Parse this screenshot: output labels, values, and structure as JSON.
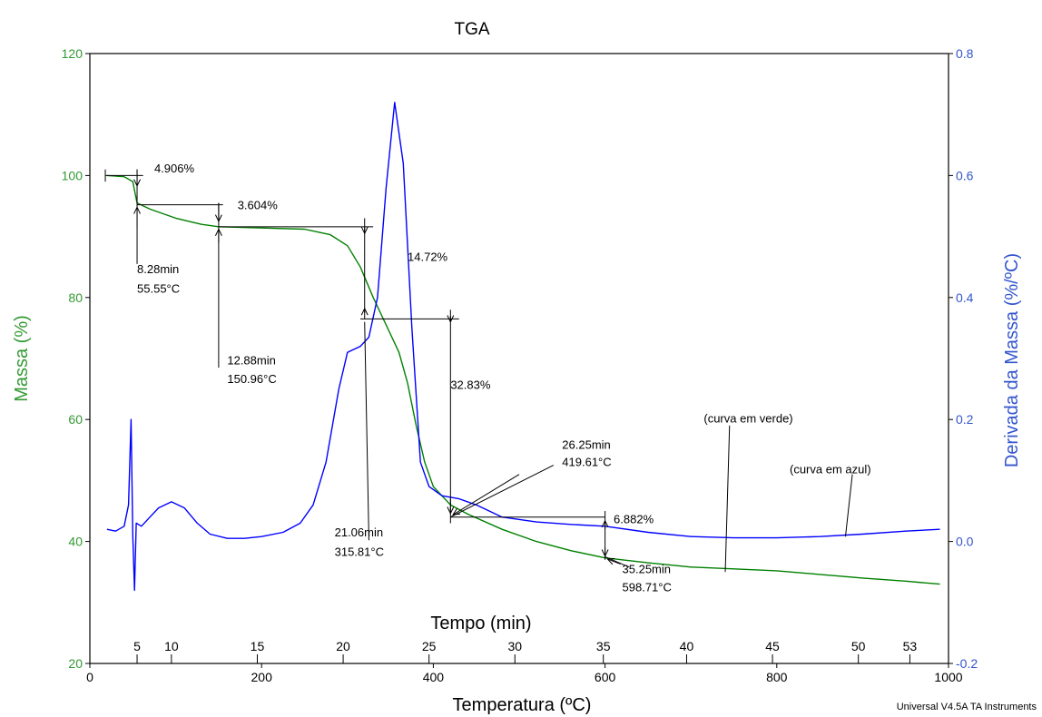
{
  "chart_data": {
    "type": "line",
    "title": "TGA",
    "xlabel": "Temperatura (ºC)",
    "x2label": "Tempo (min)",
    "ylabel": "Massa (%)",
    "y2label": "Derivada da Massa (%/ºC)",
    "footer": "Universal V4.5A TA Instruments",
    "xlim": [
      0,
      1000
    ],
    "ylim": [
      20,
      120
    ],
    "y2lim": [
      -0.2,
      0.8
    ],
    "x_ticks": [
      "0",
      "200",
      "400",
      "600",
      "800",
      "1000"
    ],
    "y_ticks": [
      "20",
      "40",
      "60",
      "80",
      "100",
      "120"
    ],
    "y2_ticks": [
      "-0.2",
      "0.0",
      "0.2",
      "0.4",
      "0.6",
      "0.8"
    ],
    "time_ticks": [
      {
        "label": "5",
        "temp": 55
      },
      {
        "label": "10",
        "temp": 95
      },
      {
        "label": "15",
        "temp": 195
      },
      {
        "label": "20",
        "temp": 295
      },
      {
        "label": "25",
        "temp": 395
      },
      {
        "label": "30",
        "temp": 495
      },
      {
        "label": "35",
        "temp": 598
      },
      {
        "label": "40",
        "temp": 695
      },
      {
        "label": "45",
        "temp": 795
      },
      {
        "label": "50",
        "temp": 895
      },
      {
        "label": "53",
        "temp": 955
      }
    ],
    "colors": {
      "mass": "#008000",
      "deriv": "#0000ff",
      "mass_axis": "#339933",
      "deriv_axis": "#3355cc"
    },
    "series": [
      {
        "key": "mass",
        "axis": "left",
        "points": [
          [
            20,
            100
          ],
          [
            40,
            99.8
          ],
          [
            50,
            99
          ],
          [
            55,
            95.5
          ],
          [
            70,
            94.5
          ],
          [
            100,
            93
          ],
          [
            130,
            92
          ],
          [
            150,
            91.6
          ],
          [
            200,
            91.4
          ],
          [
            250,
            91.2
          ],
          [
            280,
            90.3
          ],
          [
            300,
            88.5
          ],
          [
            315,
            85
          ],
          [
            330,
            80
          ],
          [
            345,
            75.5
          ],
          [
            360,
            71
          ],
          [
            370,
            66
          ],
          [
            380,
            59
          ],
          [
            390,
            53
          ],
          [
            400,
            49
          ],
          [
            420,
            46
          ],
          [
            440,
            44.5
          ],
          [
            480,
            42
          ],
          [
            520,
            40
          ],
          [
            560,
            38.5
          ],
          [
            600,
            37.3
          ],
          [
            650,
            36.5
          ],
          [
            700,
            35.8
          ],
          [
            750,
            35.5
          ],
          [
            800,
            35.2
          ],
          [
            850,
            34.6
          ],
          [
            900,
            34
          ],
          [
            950,
            33.5
          ],
          [
            990,
            33
          ]
        ]
      },
      {
        "key": "deriv",
        "axis": "right",
        "points": [
          [
            20,
            0.02
          ],
          [
            30,
            0.017
          ],
          [
            40,
            0.025
          ],
          [
            45,
            0.06
          ],
          [
            48,
            0.2
          ],
          [
            50,
            0.01
          ],
          [
            52,
            -0.08
          ],
          [
            54,
            0.03
          ],
          [
            60,
            0.025
          ],
          [
            70,
            0.04
          ],
          [
            80,
            0.055
          ],
          [
            95,
            0.065
          ],
          [
            110,
            0.055
          ],
          [
            125,
            0.03
          ],
          [
            140,
            0.012
          ],
          [
            160,
            0.005
          ],
          [
            180,
            0.005
          ],
          [
            200,
            0.008
          ],
          [
            225,
            0.015
          ],
          [
            245,
            0.03
          ],
          [
            260,
            0.06
          ],
          [
            275,
            0.13
          ],
          [
            290,
            0.25
          ],
          [
            300,
            0.31
          ],
          [
            315,
            0.32
          ],
          [
            325,
            0.335
          ],
          [
            335,
            0.4
          ],
          [
            345,
            0.58
          ],
          [
            355,
            0.72
          ],
          [
            365,
            0.62
          ],
          [
            375,
            0.35
          ],
          [
            385,
            0.13
          ],
          [
            395,
            0.09
          ],
          [
            410,
            0.075
          ],
          [
            430,
            0.07
          ],
          [
            450,
            0.06
          ],
          [
            480,
            0.04
          ],
          [
            520,
            0.032
          ],
          [
            560,
            0.028
          ],
          [
            600,
            0.025
          ],
          [
            650,
            0.015
          ],
          [
            700,
            0.008
          ],
          [
            750,
            0.006
          ],
          [
            800,
            0.006
          ],
          [
            850,
            0.008
          ],
          [
            900,
            0.012
          ],
          [
            950,
            0.017
          ],
          [
            990,
            0.02
          ]
        ]
      }
    ],
    "annotations": {
      "labels": [
        {
          "text": "4.906%",
          "x": 75,
          "y": 100.5
        },
        {
          "text": "3.604%",
          "x": 172,
          "y": 94.5
        },
        {
          "text": "14.72%",
          "x": 370,
          "y": 86
        },
        {
          "text": "32.83%",
          "x": 420,
          "y": 65
        },
        {
          "text": "6.882%",
          "x": 610,
          "y": 43
        },
        {
          "text": "8.28min",
          "x": 55,
          "y": 84
        },
        {
          "text": "55.55°C",
          "x": 55,
          "y": 80.8
        },
        {
          "text": "12.88min",
          "x": 160,
          "y": 69
        },
        {
          "text": "150.96°C",
          "x": 160,
          "y": 66
        },
        {
          "text": "21.06min",
          "x": 285,
          "y": 40.8
        },
        {
          "text": "315.81°C",
          "x": 285,
          "y": 37.6
        },
        {
          "text": "26.25min",
          "x": 550,
          "y": 55.2
        },
        {
          "text": "419.61°C",
          "x": 550,
          "y": 52.4
        },
        {
          "text": "35.25min",
          "x": 620,
          "y": 34.8
        },
        {
          "text": "598.71°C",
          "x": 620,
          "y": 31.8
        },
        {
          "text": "(curva em verde)",
          "x": 715,
          "y": 59.5
        },
        {
          "text": "(curva em azul)",
          "x": 815,
          "y": 51.2
        }
      ],
      "segments": [
        [
          18,
          100,
          62,
          100
        ],
        [
          18,
          99,
          18,
          101
        ],
        [
          55,
          101,
          55,
          85.5
        ],
        [
          55,
          95.2,
          155,
          95.2
        ],
        [
          150,
          95.5,
          150,
          68.5
        ],
        [
          150,
          91.6,
          330,
          91.6
        ],
        [
          320,
          93,
          320,
          76.5
        ],
        [
          315,
          76.5,
          430,
          76.5
        ],
        [
          420,
          78,
          420,
          43
        ],
        [
          420,
          44,
          600,
          44
        ],
        [
          600,
          45,
          600,
          37
        ],
        [
          320,
          76,
          325,
          40.2
        ],
        [
          420,
          44,
          540,
          52.5
        ],
        [
          600,
          37.5,
          628,
          35.8
        ],
        [
          745,
          59,
          740,
          35
        ],
        [
          888,
          51,
          880,
          40.8
        ]
      ],
      "arrows": [
        [
          55,
          101,
          55,
          98.3
        ],
        [
          55,
          91.5,
          55,
          94.8
        ],
        [
          150,
          95.5,
          150,
          92.5
        ],
        [
          150,
          89,
          150,
          91.2
        ],
        [
          320,
          91.5,
          320,
          90.5
        ],
        [
          320,
          77.5,
          320,
          78.2
        ],
        [
          420,
          77,
          420,
          76
        ],
        [
          420,
          47,
          420,
          44.6
        ],
        [
          600,
          42,
          600,
          43.4
        ],
        [
          600,
          39,
          600,
          37.6
        ],
        [
          500,
          51,
          423,
          44.4
        ],
        [
          618,
          36.3,
          603,
          37.1
        ]
      ]
    }
  }
}
